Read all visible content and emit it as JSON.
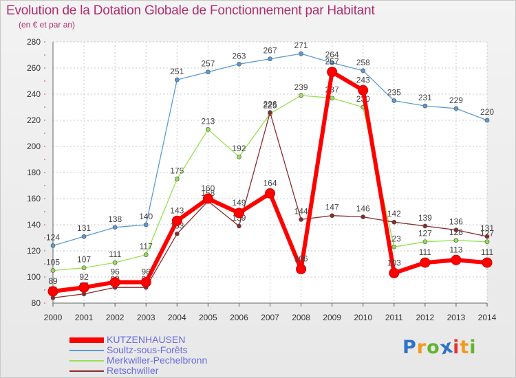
{
  "header": {
    "title": "Evolution de la Dotation Globale de Fonctionnement par Habitant",
    "subtitle": "(en € et par an)"
  },
  "brand": {
    "logo_letters": [
      "P",
      "r",
      "o",
      "x",
      "i",
      "t",
      "i"
    ],
    "logo_colors": [
      "#2e72c9",
      "#f39a1e",
      "#62b42f",
      "#2e72c9",
      "#e7322c",
      "#f39a1e",
      "#62b42f"
    ]
  },
  "chart_data": {
    "type": "line",
    "title": "Evolution de la Dotation Globale de Fonctionnement par Habitant",
    "subtitle": "(en € et par an)",
    "xlabel": "",
    "ylabel": "",
    "x": [
      2000,
      2001,
      2002,
      2003,
      2004,
      2005,
      2006,
      2007,
      2008,
      2009,
      2010,
      2011,
      2012,
      2013,
      2014
    ],
    "ylim": [
      80,
      280
    ],
    "yticks": [
      80,
      100,
      120,
      140,
      160,
      180,
      200,
      220,
      240,
      260,
      280
    ],
    "grid": true,
    "legend_position": "bottom-left",
    "series": [
      {
        "name": "KUTZENHAUSEN",
        "color": "#ff0000",
        "values": [
          89,
          92,
          96,
          96,
          143,
          160,
          149,
          164,
          106,
          257,
          243,
          103,
          111,
          113,
          111
        ]
      },
      {
        "name": "Soultz-sous-Forêts",
        "color": "#5b9bd5",
        "values": [
          124,
          131,
          138,
          140,
          251,
          257,
          263,
          267,
          271,
          264,
          258,
          235,
          231,
          229,
          220
        ]
      },
      {
        "name": "Merkwiller-Pechelbronn",
        "color": "#96e051",
        "values": [
          105,
          107,
          111,
          117,
          175,
          213,
          192,
          225,
          239,
          237,
          230,
          123,
          127,
          128,
          127
        ]
      },
      {
        "name": "Retschwiller",
        "color": "#8b2b2b",
        "values": [
          84,
          87,
          92,
          92,
          133,
          158,
          139,
          226,
          144,
          147,
          146,
          142,
          139,
          136,
          131
        ]
      }
    ]
  }
}
